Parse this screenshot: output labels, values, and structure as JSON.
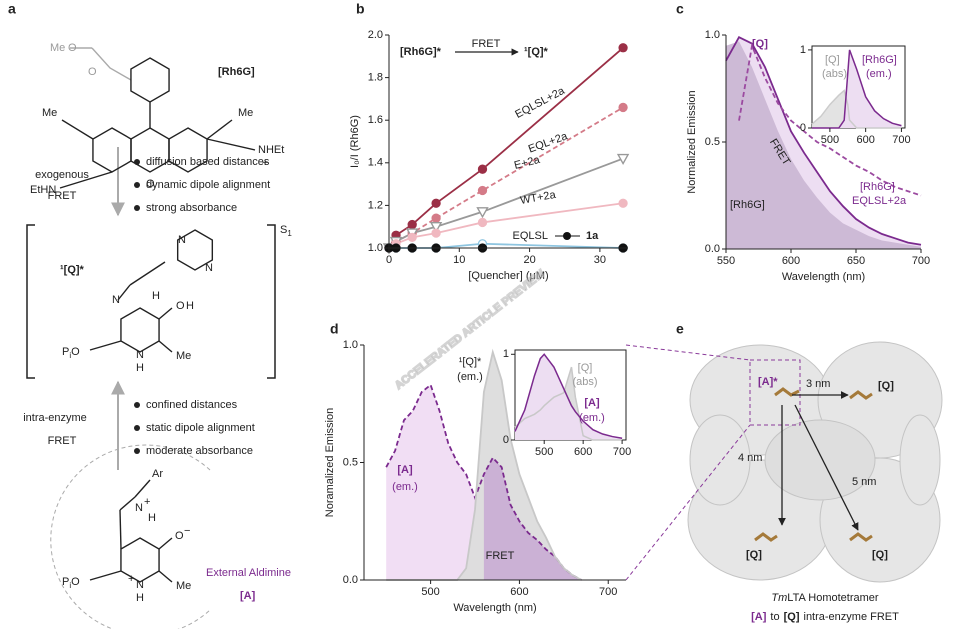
{
  "panel_labels": [
    "a",
    "b",
    "c",
    "d",
    "e"
  ],
  "watermark": "ACCELERATED ARTICLE PREVIEW",
  "panel_a": {
    "rh6g": {
      "name": "[Rh6G]",
      "labels": [
        "Me",
        "O",
        "O",
        "Me",
        "Me",
        "NHEt",
        "+",
        "EtHN",
        "O"
      ]
    },
    "step1": {
      "mechanism": [
        "exogenous",
        "FRET"
      ],
      "bullets": [
        "diffusion based distances",
        "dynamic dipole alignment",
        "strong absorbance"
      ]
    },
    "q": {
      "name": "¹[Q]*",
      "state": "S",
      "state_sub": "1",
      "labels": [
        "N",
        "N",
        "N",
        "H",
        "O",
        "H",
        "N",
        "H",
        "Me"
      ],
      "phosphate": [
        "P",
        "i",
        "O"
      ]
    },
    "step2": {
      "mechanism": [
        "intra-enzyme",
        "FRET"
      ],
      "bullets": [
        "confined distances",
        "static dipole alignment",
        "moderate absorbance"
      ]
    },
    "a": {
      "labels": [
        "Ar",
        "N",
        "+",
        "H",
        "O",
        "−",
        "N",
        "H",
        "+",
        "Me"
      ],
      "phosphate": [
        "P",
        "i",
        "O"
      ],
      "name": [
        "External Aldimine",
        "[A]"
      ]
    }
  },
  "chart_data": [
    {
      "type": "line",
      "annotation": {
        "left": "[Rh6G]*",
        "arrow": "FRET",
        "right": "¹[Q]*"
      },
      "ylabel": "I₀/I (Rh6G)",
      "xlabel": "[Quencher] (μM)",
      "x": [
        0,
        1,
        3.3,
        6.7,
        13.3,
        33.3
      ],
      "xlim": [
        0,
        34
      ],
      "xticks": [
        0,
        10,
        20,
        30
      ],
      "ylim": [
        1.0,
        2.0
      ],
      "yticks": [
        {
          "value": 1.0,
          "label": "1.0"
        },
        1.2,
        1.4,
        1.6,
        1.8,
        {
          "value": 2.0,
          "label": "2.0"
        }
      ],
      "series": [
        {
          "name": "EQLSL+2a",
          "color": "#9b2f46",
          "marker": "filled",
          "values": [
            1.0,
            1.06,
            1.11,
            1.21,
            1.37,
            1.94
          ]
        },
        {
          "name": "EQL+2a",
          "color": "#d47b88",
          "marker": "filled",
          "dash": true,
          "values": [
            1.0,
            1.03,
            1.07,
            1.14,
            1.27,
            1.66
          ]
        },
        {
          "name": "E+2a",
          "color": "#999999",
          "marker": "triangle",
          "values": [
            1.0,
            1.03,
            1.07,
            1.1,
            1.17,
            1.42
          ]
        },
        {
          "name": "WT+2a",
          "color": "#f0b8c0",
          "marker": "filled",
          "values": [
            1.0,
            1.02,
            1.05,
            1.07,
            1.12,
            1.21
          ]
        },
        {
          "color": "#8ec5e0",
          "marker": "open",
          "values": [
            1.0,
            1.0,
            1.0,
            1.0,
            1.02,
            1.0
          ]
        },
        {
          "name": "EQLSL",
          "with": "1a",
          "color": "#111111",
          "marker": "filled",
          "line": false,
          "values": [
            1.0,
            1.0,
            1.0,
            1.0,
            1.0,
            1.0
          ]
        }
      ]
    },
    {
      "type": "line",
      "ylabel": "Normalized Emission",
      "xlabel": "Wavelength (nm)",
      "x": [
        550,
        560,
        570,
        580,
        590,
        600,
        610,
        620,
        630,
        640,
        650,
        660,
        670,
        680,
        690,
        700
      ],
      "xlim": [
        550,
        700
      ],
      "xticks": [
        550,
        600,
        650,
        700
      ],
      "ylim": [
        0,
        1.0
      ],
      "yticks": [
        {
          "value": 0,
          "label": "0.0"
        },
        0.5,
        {
          "value": 1.0,
          "label": "1.0"
        }
      ],
      "series": [
        {
          "label_lines": [
            "[Rh6G]",
            "EQLSL+2a"
          ],
          "fill_label": "FRET",
          "color": "#7b2a8e",
          "fill": "#ecdcf1",
          "values": [
            0.88,
            0.99,
            0.96,
            0.85,
            0.7,
            0.55,
            0.45,
            0.36,
            0.27,
            0.2,
            0.14,
            0.1,
            0.07,
            0.05,
            0.03,
            0.02
          ]
        },
        {
          "name": "[Rh6G]",
          "color": "#cbb7d4",
          "fill": "#cbb7d4",
          "line": false,
          "values": [
            0.95,
            0.97,
            0.85,
            0.7,
            0.55,
            0.42,
            0.32,
            0.24,
            0.17,
            0.12,
            0.09,
            0.06,
            0.04,
            0.03,
            0.02,
            0.01
          ]
        },
        {
          "name": "[Q]",
          "color": "#9b4aa0",
          "dash": true,
          "values": [
            null,
            0.6,
            0.95,
            0.8,
            0.68,
            0.6,
            0.55,
            0.5,
            0.47,
            0.43,
            0.39,
            0.36,
            0.32,
            0.29,
            0.27,
            0.25
          ]
        }
      ],
      "inset": {
        "x": [
          450,
          475,
          500,
          525,
          540,
          550,
          555,
          575,
          600,
          625,
          650,
          675,
          700
        ],
        "xlim": [
          450,
          710
        ],
        "xticks": [
          500,
          600,
          700
        ],
        "ylim": [
          0,
          1.05
        ],
        "yticks": [
          0,
          1
        ],
        "series": [
          {
            "label_lines": [
              "[Q]",
              "(abs)"
            ],
            "color": "#cccccc",
            "fill": "#e2e2e2",
            "values": [
              0.05,
              0.15,
              0.3,
              0.42,
              0.48,
              0.3,
              0.1,
              0,
              0,
              0,
              0,
              0,
              0
            ]
          },
          {
            "label_lines": [
              "[Rh6G]",
              "(em.)"
            ],
            "color": "#7b2a8e",
            "fill": "#ecdcf1",
            "values": [
              0,
              0,
              0,
              0,
              0.1,
              0.7,
              1,
              0.75,
              0.4,
              0.22,
              0.12,
              0.06,
              0.03
            ]
          }
        ]
      }
    },
    {
      "type": "line",
      "ylabel": "Noramalized Emission",
      "xlabel": "Wavelength (nm)",
      "x": [
        450,
        460,
        470,
        480,
        490,
        500,
        510,
        520,
        530,
        540,
        550,
        560,
        570,
        580,
        590,
        600,
        610,
        620,
        630,
        640,
        650,
        660,
        670
      ],
      "xlim": [
        425,
        720
      ],
      "xticks": [
        500,
        600,
        700
      ],
      "ylim": [
        0,
        1.0
      ],
      "yticks": [
        {
          "value": 0,
          "label": "0.0"
        },
        0.5,
        {
          "value": 1.0,
          "label": "1.0"
        }
      ],
      "series": [
        {
          "label_lines": [
            "[A]",
            "(em.)"
          ],
          "color": "#7b2a8e",
          "dash": true,
          "fill": "#f0dcf3",
          "values": [
            0.48,
            0.55,
            0.68,
            0.72,
            0.8,
            0.83,
            0.72,
            0.58,
            0.5,
            0.45,
            0.35,
            0.45,
            0.52,
            0.48,
            0.32,
            0.25,
            0.2,
            0.17,
            0.13,
            0.1,
            0.05,
            0.02,
            0
          ]
        },
        {
          "label_lines": [
            "¹[Q]*",
            "(em.)"
          ],
          "color": "#c8c8c8",
          "fill": "#dcdcdc",
          "values": [
            0,
            0,
            0,
            0,
            0,
            0,
            0,
            0,
            0,
            0.05,
            0.3,
            0.8,
            0.97,
            0.85,
            0.6,
            0.45,
            0.35,
            0.25,
            0.18,
            0.1,
            0.05,
            0.02,
            0
          ]
        },
        {
          "name": "FRET",
          "color": "#c9aed4",
          "fill": "#c9aed4",
          "line": false,
          "values": [
            null,
            null,
            null,
            null,
            null,
            null,
            null,
            null,
            null,
            null,
            null,
            0.45,
            0.52,
            0.48,
            0.32,
            0.25,
            0.2,
            0.17,
            0.13,
            0.1,
            0.05,
            0.02,
            0
          ]
        }
      ],
      "inset": {
        "x": [
          425,
          450,
          475,
          490,
          500,
          525,
          550,
          560,
          570,
          580,
          600,
          625,
          650,
          675,
          700
        ],
        "xlim": [
          425,
          710
        ],
        "xticks": [
          500,
          600,
          700
        ],
        "ylim": [
          0,
          1.05
        ],
        "yticks": [
          0,
          1
        ],
        "series": [
          {
            "label_lines": [
              "[Q]",
              "(abs)"
            ],
            "color": "#c8c8c8",
            "fill": "#dcdcdc",
            "values": [
              0.15,
              0.25,
              0.3,
              0.35,
              0.4,
              0.5,
              0.55,
              0.7,
              0.85,
              0.5,
              0.05,
              0,
              0,
              0,
              0
            ]
          },
          {
            "label_lines": [
              "[A]",
              "(em.)"
            ],
            "color": "#7b2a8e",
            "fill": "#ecdcf1",
            "values": [
              0.1,
              0.35,
              0.75,
              0.95,
              1,
              0.85,
              0.6,
              0.5,
              0.4,
              0.33,
              0.22,
              0.12,
              0.07,
              0.04,
              0.02
            ]
          }
        ]
      }
    }
  ],
  "panel_e": {
    "labels": [
      "[A]*",
      "3 nm",
      "[Q]",
      "4 nm",
      "5 nm",
      "[Q]",
      "[Q]"
    ],
    "caption": {
      "italic": "Tm",
      "rest": "LTA Homotetramer"
    },
    "caption2": {
      "a": "[A]",
      "mid": "to",
      "q": "[Q]",
      "rest": "intra-enzyme FRET"
    }
  }
}
